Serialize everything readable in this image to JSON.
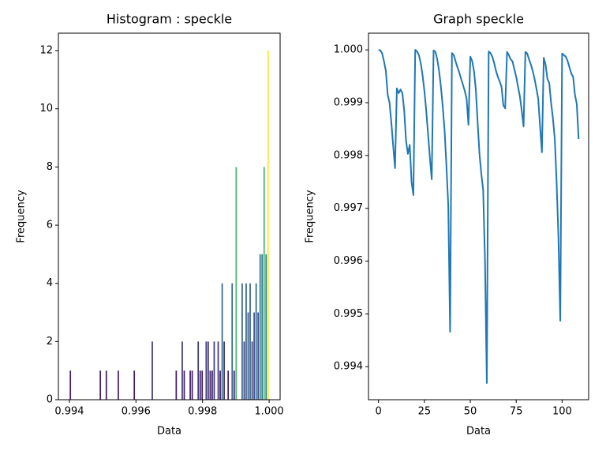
{
  "chart_data": [
    {
      "type": "histogram",
      "title": "Histogram : speckle",
      "xlabel": "Data",
      "ylabel": "Frequency",
      "bins": [
        0.994,
        0.99406,
        0.99412,
        0.99418,
        0.99424,
        0.9943,
        0.99436,
        0.99442,
        0.99448,
        0.99454,
        0.9946,
        0.99466,
        0.99472,
        0.99478,
        0.99484,
        0.9949,
        0.99496,
        0.99502,
        0.99508,
        0.99514,
        0.9952,
        0.99526,
        0.99532,
        0.99538,
        0.99544,
        0.9955,
        0.99556,
        0.99562,
        0.99568,
        0.99574,
        0.9958,
        0.99586,
        0.99592,
        0.99598,
        0.99604,
        0.9961,
        0.99616,
        0.99622,
        0.99628,
        0.99634,
        0.9964,
        0.99646,
        0.99652,
        0.99658,
        0.99664,
        0.9967,
        0.99676,
        0.99682,
        0.99688,
        0.99694,
        0.997,
        0.99706,
        0.99712,
        0.99718,
        0.99724,
        0.9973,
        0.99736,
        0.99742,
        0.99748,
        0.99754,
        0.9976,
        0.99766,
        0.99772,
        0.99778,
        0.99784,
        0.9979,
        0.99796,
        0.99802,
        0.99808,
        0.99814,
        0.9982,
        0.99826,
        0.99832,
        0.99838,
        0.99844,
        0.9985,
        0.99856,
        0.99862,
        0.99868,
        0.99874,
        0.9988,
        0.99886,
        0.99892,
        0.99898,
        0.99904,
        0.9991,
        0.99916,
        0.99922,
        0.99928,
        0.99934,
        0.9994,
        0.99946,
        0.99952,
        0.99958,
        0.99964,
        0.9997,
        0.99976,
        0.99982,
        0.99988,
        0.99994,
        1.0
      ],
      "counts": [
        1,
        0,
        0,
        0,
        0,
        0,
        0,
        0,
        0,
        0,
        0,
        0,
        0,
        0,
        0,
        1,
        0,
        0,
        1,
        0,
        0,
        0,
        0,
        0,
        1,
        0,
        0,
        0,
        0,
        0,
        0,
        0,
        1,
        0,
        0,
        0,
        0,
        0,
        0,
        0,
        0,
        2,
        0,
        0,
        0,
        0,
        0,
        0,
        0,
        0,
        0,
        0,
        0,
        1,
        0,
        0,
        2,
        1,
        0,
        0,
        1,
        1,
        0,
        0,
        2,
        1,
        1,
        0,
        2,
        2,
        1,
        1,
        2,
        0,
        2,
        1,
        4,
        2,
        0,
        1,
        0,
        4,
        1,
        8,
        0,
        0,
        4,
        2,
        4,
        3,
        4,
        2,
        3,
        4,
        3,
        5,
        5,
        8,
        5,
        12
      ],
      "colormap": [
        "#440154",
        "#3b528b",
        "#21918c",
        "#5ec962",
        "#fde725"
      ],
      "xlim": [
        0.99367,
        1.00033
      ],
      "xticks": [
        0.994,
        0.996,
        0.998,
        {
          "value": 1.0,
          "label": "1.000"
        }
      ],
      "ylim": [
        0,
        12.6
      ],
      "yticks": [
        0,
        2,
        4,
        6,
        8,
        10,
        12
      ]
    },
    {
      "type": "line",
      "title": "Graph speckle",
      "xlabel": "Data",
      "ylabel": "Frequency",
      "color": "#1f77b4",
      "x": [
        0,
        1,
        2,
        3,
        4,
        5,
        6,
        7,
        8,
        9,
        10,
        11,
        12,
        13,
        14,
        15,
        16,
        17,
        18,
        19,
        20,
        21,
        22,
        23,
        24,
        25,
        26,
        27,
        28,
        29,
        30,
        31,
        32,
        33,
        34,
        35,
        36,
        37,
        38,
        39,
        40,
        41,
        42,
        43,
        44,
        45,
        46,
        47,
        48,
        49,
        50,
        51,
        52,
        53,
        54,
        55,
        56,
        57,
        58,
        59,
        60,
        61,
        62,
        63,
        64,
        65,
        66,
        67,
        68,
        69,
        70,
        71,
        72,
        73,
        74,
        75,
        76,
        77,
        78,
        79,
        80,
        81,
        82,
        83,
        84,
        85,
        86,
        87,
        88,
        89,
        90,
        91,
        92,
        93,
        94,
        95,
        96,
        97,
        98,
        99,
        100,
        101,
        102,
        103,
        104,
        105,
        106,
        107,
        108,
        109
      ],
      "values": [
        1.0,
        0.99999,
        0.99993,
        0.99978,
        0.9996,
        0.99915,
        0.999,
        0.99862,
        0.99818,
        0.99776,
        0.99927,
        0.99918,
        0.99925,
        0.99918,
        0.99885,
        0.99828,
        0.99803,
        0.9982,
        0.9975,
        0.99725,
        1.0,
        0.99997,
        0.9999,
        0.99975,
        0.99952,
        0.99922,
        0.99885,
        0.9984,
        0.99795,
        0.99755,
        0.99999,
        0.99996,
        0.99982,
        0.9996,
        0.9993,
        0.99892,
        0.99847,
        0.9978,
        0.99705,
        0.99466,
        0.99994,
        0.9999,
        0.99978,
        0.99967,
        0.99957,
        0.99945,
        0.99934,
        0.99922,
        0.99907,
        0.99858,
        0.99987,
        0.99979,
        0.9996,
        0.99925,
        0.99862,
        0.99803,
        0.99765,
        0.99735,
        0.99601,
        0.99369,
        0.99997,
        0.99994,
        0.99987,
        0.99975,
        0.9996,
        0.99949,
        0.9994,
        0.9993,
        0.99895,
        0.99889,
        0.99996,
        0.9999,
        0.99982,
        0.99978,
        0.99963,
        0.99949,
        0.9993,
        0.99912,
        0.99885,
        0.99855,
        0.99996,
        0.99993,
        0.99982,
        0.99972,
        0.9996,
        0.99945,
        0.99927,
        0.99907,
        0.99855,
        0.99806,
        0.99985,
        0.99972,
        0.99945,
        0.99937,
        0.999,
        0.9987,
        0.99832,
        0.9975,
        0.99645,
        0.99487,
        0.99993,
        0.9999,
        0.99987,
        0.99979,
        0.99967,
        0.99955,
        0.99949,
        0.99915,
        0.99897,
        0.99831
      ],
      "xlim": [
        -5.45,
        114.45
      ],
      "xticks": [
        0,
        25,
        50,
        75,
        100
      ],
      "ylim": [
        0.993374,
        1.000316
      ],
      "yticks": [
        {
          "value": 1.0,
          "label": "1.000"
        },
        0.999,
        0.998,
        0.997,
        0.996,
        0.995,
        0.994
      ]
    }
  ]
}
